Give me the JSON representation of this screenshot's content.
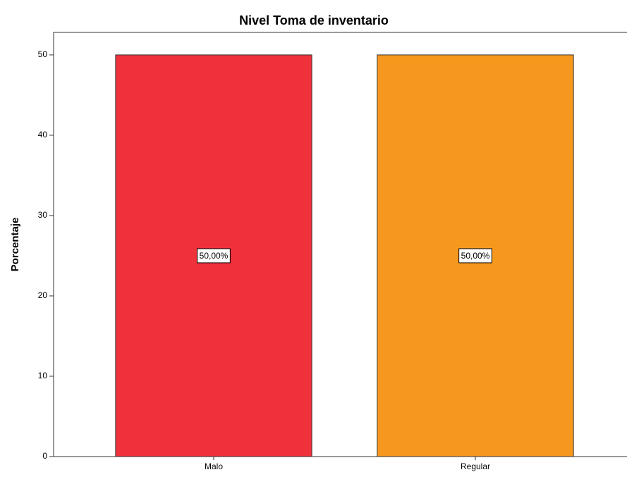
{
  "chart_data": {
    "type": "bar",
    "title": "Nivel Toma de inventario",
    "y_label": "Porcentaje",
    "categories": [
      "Malo",
      "Regular"
    ],
    "values": [
      50,
      50
    ],
    "value_labels": [
      "50,00%",
      "50,00%"
    ],
    "colors": [
      "#ef313b",
      "#f7981e"
    ],
    "ylim": [
      0,
      52.8
    ],
    "yticks": [
      0,
      10,
      20,
      30,
      40,
      50
    ]
  }
}
